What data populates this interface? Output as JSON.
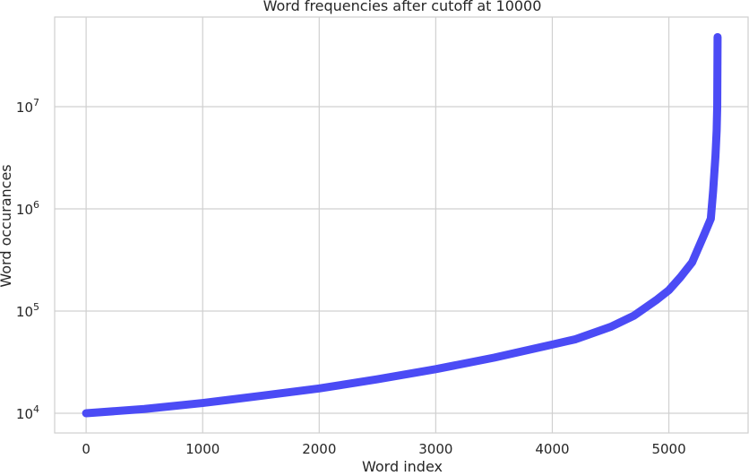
{
  "chart_data": {
    "type": "line",
    "title": "Word frequencies after cutoff at 10000",
    "xlabel": "Word index",
    "ylabel": "Word occurances",
    "xlim": [
      -270,
      5680
    ],
    "ylim_log10": [
      3.85,
      4.78
    ],
    "yscale": "log",
    "grid": true,
    "line_color": "#4b4bf5",
    "x_ticks": [
      {
        "value": 0,
        "label": "0"
      },
      {
        "value": 1000,
        "label": "1000"
      },
      {
        "value": 2000,
        "label": "2000"
      },
      {
        "value": 3000,
        "label": "3000"
      },
      {
        "value": 4000,
        "label": "4000"
      },
      {
        "value": 5000,
        "label": "5000"
      }
    ],
    "y_ticks": [
      {
        "value": 10000,
        "base": "10",
        "exp": "4"
      },
      {
        "value": 100000,
        "base": "10",
        "exp": "5"
      },
      {
        "value": 1000000,
        "base": "10",
        "exp": "6"
      },
      {
        "value": 10000000,
        "base": "10",
        "exp": "7"
      }
    ],
    "series": [
      {
        "x": [
          0,
          500,
          1000,
          1500,
          2000,
          2500,
          3000,
          3500,
          4000,
          4200,
          4500,
          4700,
          4900,
          5000,
          5100,
          5200,
          5300,
          5360,
          5380,
          5400,
          5410,
          5415,
          5418
        ],
        "y": [
          10000,
          11000,
          12600,
          14800,
          17500,
          21500,
          27000,
          35000,
          47000,
          53000,
          70000,
          90000,
          130000,
          160000,
          215000,
          300000,
          550000,
          800000,
          1500000,
          3300000,
          5800000,
          10000000,
          48000000
        ]
      }
    ]
  }
}
